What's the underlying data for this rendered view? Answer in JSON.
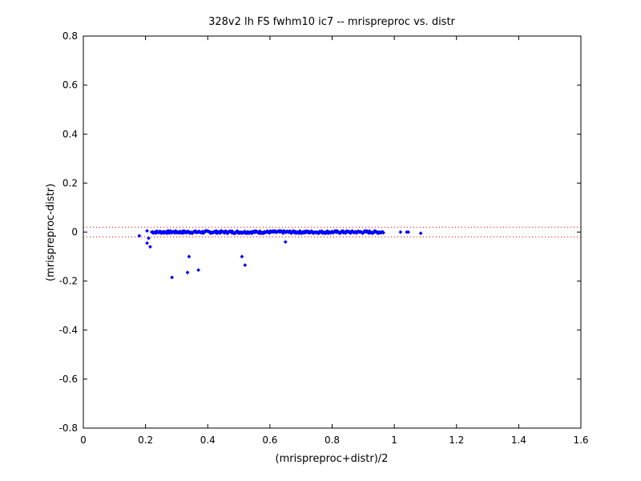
{
  "chart_data": {
    "type": "scatter",
    "title": "328v2 lh FS fwhm10 ic7 -- mrispreproc vs. distr",
    "xlabel": "(mrispreproc+distr)/2",
    "ylabel": "(mrispreproc-distr)",
    "xlim": [
      0,
      1.6
    ],
    "ylim": [
      -0.8,
      0.8
    ],
    "x_ticks": [
      "0",
      "0.2",
      "0.4",
      "0.6",
      "0.8",
      "1",
      "1.2",
      "1.4",
      "1.6"
    ],
    "y_ticks": [
      "0.8",
      "0.6",
      "0.4",
      "0.2",
      "0",
      "-0.2",
      "-0.4",
      "-0.6",
      "-0.8"
    ],
    "grid": false,
    "colors": {
      "points": "#0000ff",
      "reference_lines": "#ff0000"
    },
    "reference_lines_y": [
      0.02,
      -0.02
    ],
    "outliers": [
      [
        0.18,
        -0.015
      ],
      [
        0.205,
        0.005
      ],
      [
        0.205,
        -0.045
      ],
      [
        0.21,
        -0.025
      ],
      [
        0.215,
        -0.06
      ],
      [
        0.285,
        -0.185
      ],
      [
        0.335,
        -0.165
      ],
      [
        0.34,
        -0.1
      ],
      [
        0.37,
        -0.155
      ],
      [
        0.51,
        -0.1
      ],
      [
        0.52,
        -0.135
      ],
      [
        0.65,
        -0.04
      ],
      [
        1.02,
        0.0
      ],
      [
        1.04,
        0.0
      ],
      [
        1.045,
        0.0
      ],
      [
        1.085,
        -0.005
      ]
    ],
    "dense_band": {
      "x_range": [
        0.22,
        0.965
      ],
      "y_center": 0.0,
      "y_spread": 0.005,
      "count": 320
    }
  }
}
